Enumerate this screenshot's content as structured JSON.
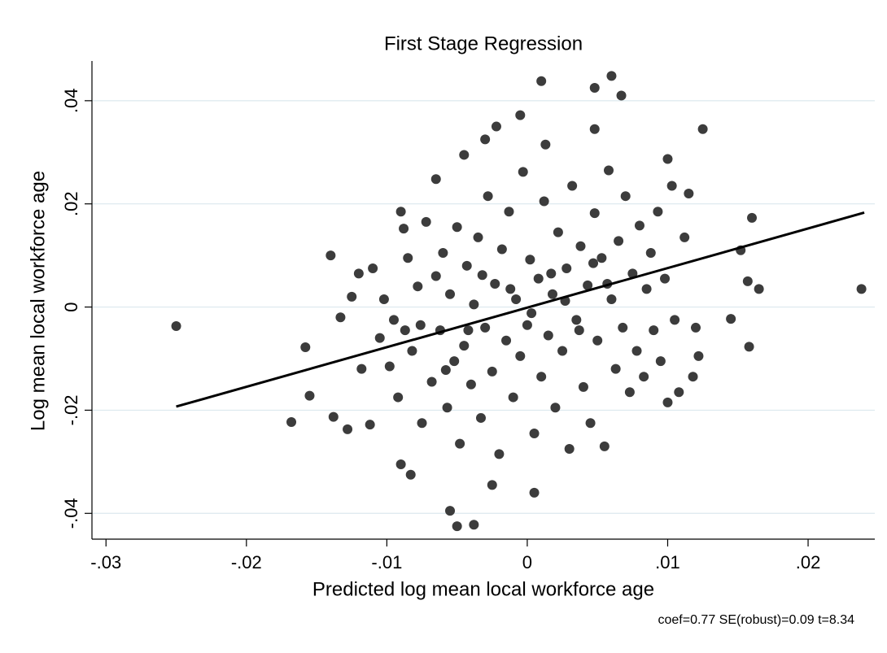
{
  "chart_data": {
    "type": "scatter",
    "title": "First Stage Regression",
    "x_label": "Predicted log mean local workforce age",
    "y_label": "Log mean local workforce age",
    "annotation": "coef=0.77 SE(robust)=0.09 t=8.34",
    "color": "#3c3c3c",
    "xlim": [
      -0.031,
      0.02475
    ],
    "ylim": [
      -0.045,
      0.0477
    ],
    "xticks": [
      {
        "value": -0.03,
        "label": "-.03"
      },
      {
        "value": -0.02,
        "label": "-.02"
      },
      {
        "value": -0.01,
        "label": "-.01"
      },
      0,
      {
        "value": 0.01,
        "label": ".01"
      },
      {
        "value": 0.02,
        "label": ".02"
      }
    ],
    "yticks": [
      {
        "value": -0.04,
        "label": "-.04"
      },
      {
        "value": -0.02,
        "label": "-.02"
      },
      0,
      {
        "value": 0.02,
        "label": ".02"
      },
      {
        "value": 0.04,
        "label": ".04"
      }
    ],
    "grid": true,
    "x": [
      -0.025,
      0.0238,
      0.0165,
      0.016,
      0.0125,
      0.001,
      0.006,
      0.0048,
      -0.005,
      -0.0038,
      -0.0055,
      0.0005,
      -0.0168,
      -0.0155,
      -0.0158,
      -0.014,
      -0.0138,
      -0.0128,
      -0.0112,
      0.0145,
      0.0152,
      0.0158,
      0.0157,
      -0.0083,
      -0.009,
      -0.0025,
      -0.0022,
      -0.003,
      -0.0045,
      -0.0065,
      0.01,
      0.0067,
      -0.0005,
      0.0013,
      0.0048,
      -0.0125,
      -0.012,
      -0.011,
      -0.0105,
      -0.0098,
      -0.0092,
      -0.009,
      -0.0088,
      -0.0085,
      -0.0082,
      -0.0078,
      -0.0075,
      -0.0072,
      -0.0068,
      -0.0065,
      -0.0062,
      -0.006,
      -0.0057,
      -0.0055,
      -0.0052,
      -0.005,
      -0.0048,
      -0.0045,
      -0.0043,
      -0.004,
      -0.0038,
      -0.0035,
      -0.0033,
      -0.003,
      -0.0028,
      -0.0025,
      -0.0023,
      -0.002,
      -0.0018,
      -0.0015,
      -0.0013,
      -0.001,
      -0.0008,
      -0.0005,
      -0.0003,
      0.0,
      0.0002,
      0.0005,
      0.0008,
      0.001,
      0.0012,
      0.0015,
      0.0018,
      0.002,
      0.0022,
      0.0025,
      0.0028,
      0.003,
      0.0032,
      0.0035,
      0.0038,
      0.004,
      0.0043,
      0.0045,
      0.0048,
      0.005,
      0.0053,
      0.0055,
      0.0058,
      0.006,
      0.0063,
      0.0065,
      0.0068,
      0.007,
      0.0073,
      0.0075,
      0.0078,
      0.008,
      0.0083,
      0.0085,
      0.0088,
      0.009,
      0.0093,
      0.0095,
      0.0098,
      0.01,
      0.0103,
      0.0105,
      0.0108,
      0.0112,
      0.0115,
      0.0118,
      0.012,
      0.0122,
      -0.0133,
      -0.0118,
      -0.0102,
      -0.0095,
      -0.0087,
      -0.0076,
      -0.0058,
      -0.0042,
      -0.0032,
      -0.0012,
      0.0003,
      0.0017,
      0.0027,
      0.0037,
      0.0047,
      0.0057
    ],
    "values": [
      -0.0037,
      0.0035,
      0.0035,
      0.0173,
      0.0345,
      0.0438,
      0.0448,
      0.0425,
      -0.0425,
      -0.0422,
      -0.0395,
      -0.036,
      -0.0223,
      -0.0172,
      -0.0078,
      0.01,
      -0.0213,
      -0.0237,
      -0.0228,
      -0.0023,
      0.011,
      -0.0077,
      0.005,
      -0.0325,
      -0.0305,
      -0.0345,
      0.035,
      0.0325,
      0.0295,
      0.0248,
      0.0287,
      0.041,
      0.0372,
      0.0315,
      0.0345,
      0.002,
      0.0065,
      0.0075,
      -0.006,
      -0.0115,
      -0.0175,
      0.0185,
      0.0152,
      0.0095,
      -0.0085,
      0.004,
      -0.0225,
      0.0165,
      -0.0145,
      0.006,
      -0.0045,
      0.0105,
      -0.0195,
      0.0025,
      -0.0105,
      0.0155,
      -0.0265,
      -0.0075,
      0.008,
      -0.015,
      0.0005,
      0.0135,
      -0.0215,
      -0.004,
      0.0215,
      -0.0125,
      0.0045,
      -0.0285,
      0.0112,
      -0.0065,
      0.0185,
      -0.0175,
      0.0015,
      -0.0095,
      0.0262,
      -0.0035,
      0.0092,
      -0.0245,
      0.0055,
      -0.0135,
      0.0205,
      -0.0055,
      0.0025,
      -0.0195,
      0.0145,
      -0.0085,
      0.0075,
      -0.0275,
      0.0235,
      -0.0025,
      0.0118,
      -0.0155,
      0.0042,
      -0.0225,
      0.0182,
      -0.0065,
      0.0095,
      -0.027,
      0.0265,
      0.0015,
      -0.012,
      0.0128,
      -0.004,
      0.0215,
      -0.0165,
      0.0065,
      -0.0085,
      0.0158,
      -0.0135,
      0.0035,
      0.0105,
      -0.0045,
      0.0185,
      -0.0105,
      0.0055,
      -0.0185,
      0.0235,
      -0.0025,
      -0.0165,
      0.0135,
      0.022,
      -0.0135,
      -0.004,
      -0.0095,
      -0.002,
      -0.012,
      0.0015,
      -0.0025,
      -0.0045,
      -0.0035,
      -0.0122,
      -0.0045,
      0.0062,
      0.0035,
      -0.0012,
      0.0065,
      0.0012,
      -0.0045,
      0.0085,
      0.0045
    ],
    "fit_line": {
      "x": [
        -0.025,
        0.024
      ],
      "values": [
        -0.0193,
        0.0183
      ],
      "color": "#000000"
    }
  }
}
